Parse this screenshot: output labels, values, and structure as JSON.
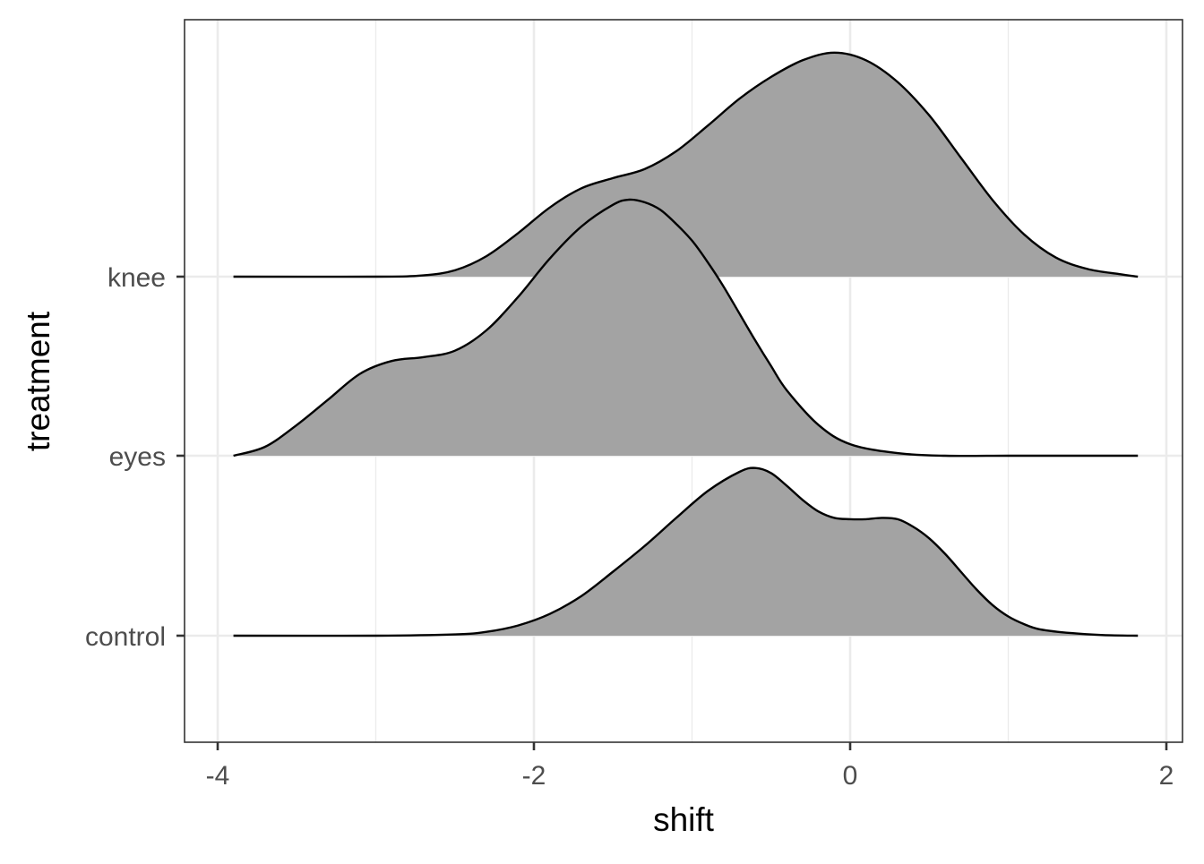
{
  "chart_data": {
    "type": "ridgeline",
    "xlabel": "shift",
    "ylabel": "treatment",
    "xlim": [
      -4.2,
      2.1
    ],
    "x_ticks": [
      -4,
      -2,
      0,
      2
    ],
    "x_tick_labels": [
      "-4",
      "-2",
      "0",
      "2"
    ],
    "categories": [
      "control",
      "eyes",
      "knee"
    ],
    "grid": true,
    "fill_color": "#a3a3a3",
    "line_color": "#000000",
    "density_range": [
      -3.9,
      1.82
    ],
    "series": [
      {
        "category": "control",
        "curve_x": [
          -3.9,
          -3.0,
          -2.5,
          -2.3,
          -2.1,
          -1.9,
          -1.7,
          -1.5,
          -1.3,
          -1.1,
          -0.9,
          -0.7,
          -0.6,
          -0.5,
          -0.4,
          -0.3,
          -0.2,
          -0.1,
          0.0,
          0.1,
          0.2,
          0.3,
          0.4,
          0.5,
          0.6,
          0.7,
          0.8,
          0.9,
          1.0,
          1.1,
          1.2,
          1.4,
          1.6,
          1.82
        ],
        "curve_height": [
          0.0,
          0.0,
          0.01,
          0.03,
          0.08,
          0.17,
          0.31,
          0.5,
          0.7,
          0.92,
          1.13,
          1.28,
          1.31,
          1.27,
          1.17,
          1.06,
          0.97,
          0.92,
          0.91,
          0.91,
          0.92,
          0.91,
          0.85,
          0.76,
          0.64,
          0.5,
          0.36,
          0.24,
          0.15,
          0.09,
          0.05,
          0.02,
          0.005,
          0.0
        ]
      },
      {
        "category": "eyes",
        "curve_x": [
          -3.9,
          -3.7,
          -3.5,
          -3.3,
          -3.1,
          -2.9,
          -2.7,
          -2.5,
          -2.3,
          -2.1,
          -1.9,
          -1.7,
          -1.5,
          -1.4,
          -1.3,
          -1.2,
          -1.1,
          -1.0,
          -0.9,
          -0.8,
          -0.7,
          -0.6,
          -0.5,
          -0.4,
          -0.2,
          0.0,
          0.3,
          0.6,
          1.0,
          1.4,
          1.82
        ],
        "curve_height": [
          0.0,
          0.07,
          0.24,
          0.44,
          0.64,
          0.74,
          0.77,
          0.82,
          0.98,
          1.24,
          1.54,
          1.79,
          1.96,
          2.0,
          1.98,
          1.92,
          1.81,
          1.68,
          1.51,
          1.32,
          1.11,
          0.9,
          0.7,
          0.51,
          0.24,
          0.09,
          0.02,
          0.0,
          0.0,
          0.0,
          0.0
        ]
      },
      {
        "category": "knee",
        "curve_x": [
          -3.9,
          -3.0,
          -2.7,
          -2.5,
          -2.3,
          -2.1,
          -1.9,
          -1.7,
          -1.5,
          -1.3,
          -1.1,
          -0.9,
          -0.7,
          -0.5,
          -0.3,
          -0.1,
          0.1,
          0.3,
          0.5,
          0.7,
          0.9,
          1.1,
          1.3,
          1.5,
          1.7,
          1.82
        ],
        "curve_height": [
          0.0,
          0.0,
          0.01,
          0.05,
          0.16,
          0.34,
          0.54,
          0.69,
          0.77,
          0.84,
          0.98,
          1.18,
          1.39,
          1.56,
          1.69,
          1.75,
          1.69,
          1.52,
          1.26,
          0.93,
          0.6,
          0.33,
          0.15,
          0.06,
          0.02,
          0.0
        ]
      }
    ]
  }
}
